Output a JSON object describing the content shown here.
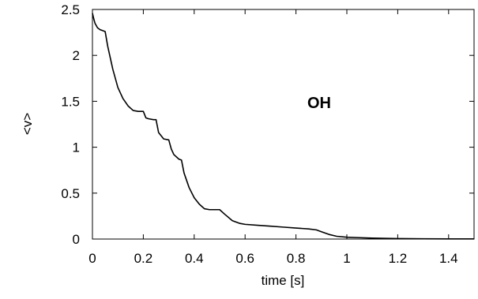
{
  "chart_data": {
    "type": "line",
    "title": "",
    "xlabel": "time [s]",
    "ylabel": "<v>",
    "xlim": [
      0,
      1.5
    ],
    "ylim": [
      0,
      2.5
    ],
    "xticks": [
      0,
      0.2,
      0.4,
      0.6,
      0.8,
      1,
      1.2,
      1.4
    ],
    "xtick_labels": [
      "0",
      "0.2",
      "0.4",
      "0.6",
      "0.8",
      "1",
      "1.2",
      "1.4"
    ],
    "yticks": [
      0,
      0.5,
      1,
      1.5,
      2,
      2.5
    ],
    "ytick_labels": [
      "0",
      "0.5",
      "1",
      "1.5",
      "2",
      "2.5"
    ],
    "grid": false,
    "annotation": "OH",
    "series": [
      {
        "color": "#000000",
        "x": [
          0,
          0.005,
          0.01,
          0.02,
          0.03,
          0.04,
          0.05,
          0.06,
          0.08,
          0.1,
          0.12,
          0.14,
          0.16,
          0.18,
          0.2,
          0.21,
          0.22,
          0.24,
          0.25,
          0.26,
          0.28,
          0.3,
          0.31,
          0.32,
          0.34,
          0.35,
          0.36,
          0.38,
          0.4,
          0.42,
          0.44,
          0.46,
          0.48,
          0.5,
          0.52,
          0.55,
          0.58,
          0.6,
          0.65,
          0.7,
          0.75,
          0.8,
          0.85,
          0.88,
          0.9,
          0.93,
          0.96,
          1.0,
          1.05,
          1.1,
          1.2,
          1.3,
          1.4,
          1.5
        ],
        "y": [
          2.46,
          2.4,
          2.35,
          2.3,
          2.28,
          2.27,
          2.26,
          2.1,
          1.85,
          1.65,
          1.53,
          1.45,
          1.4,
          1.39,
          1.39,
          1.32,
          1.31,
          1.3,
          1.3,
          1.16,
          1.09,
          1.08,
          0.98,
          0.92,
          0.87,
          0.86,
          0.72,
          0.56,
          0.45,
          0.38,
          0.33,
          0.32,
          0.32,
          0.32,
          0.27,
          0.2,
          0.17,
          0.16,
          0.15,
          0.14,
          0.13,
          0.12,
          0.11,
          0.1,
          0.08,
          0.05,
          0.03,
          0.02,
          0.015,
          0.01,
          0.005,
          0.003,
          0.002,
          0.002
        ]
      }
    ]
  }
}
